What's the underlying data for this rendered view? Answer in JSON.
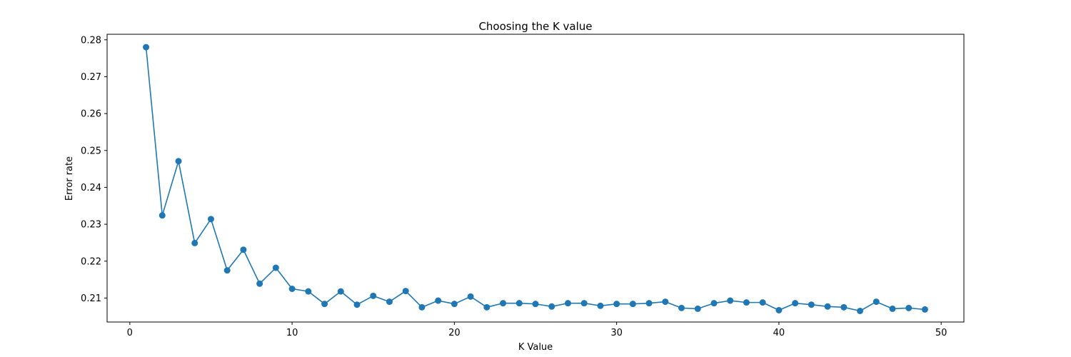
{
  "chart_data": {
    "type": "line",
    "title": "Choosing the K value",
    "xlabel": "K Value",
    "ylabel": "Error rate",
    "xlim": [
      -1.4,
      51.4
    ],
    "ylim": [
      0.2035,
      0.2815
    ],
    "xticks": [
      0,
      10,
      20,
      30,
      40,
      50
    ],
    "yticks": [
      0.21,
      0.22,
      0.23,
      0.24,
      0.25,
      0.26,
      0.27,
      0.28
    ],
    "grid": false,
    "line_color": "#1f77b4",
    "marker": "circle",
    "x": [
      1,
      2,
      3,
      4,
      5,
      6,
      7,
      8,
      9,
      10,
      11,
      12,
      13,
      14,
      15,
      16,
      17,
      18,
      19,
      20,
      21,
      22,
      23,
      24,
      25,
      26,
      27,
      28,
      29,
      30,
      31,
      32,
      33,
      34,
      35,
      36,
      37,
      38,
      39,
      40,
      41,
      42,
      43,
      44,
      45,
      46,
      47,
      48,
      49
    ],
    "y": [
      0.278,
      0.2324,
      0.2471,
      0.2249,
      0.2314,
      0.2175,
      0.2231,
      0.2139,
      0.2182,
      0.2125,
      0.2118,
      0.2084,
      0.2118,
      0.2082,
      0.2106,
      0.209,
      0.2119,
      0.2075,
      0.2093,
      0.2084,
      0.2104,
      0.2075,
      0.2086,
      0.2086,
      0.2084,
      0.2077,
      0.2086,
      0.2086,
      0.2079,
      0.2084,
      0.2084,
      0.2086,
      0.209,
      0.2073,
      0.2071,
      0.2086,
      0.2093,
      0.2088,
      0.2088,
      0.2067,
      0.2086,
      0.2082,
      0.2077,
      0.2075,
      0.2065,
      0.209,
      0.2071,
      0.2073,
      0.2069
    ]
  }
}
